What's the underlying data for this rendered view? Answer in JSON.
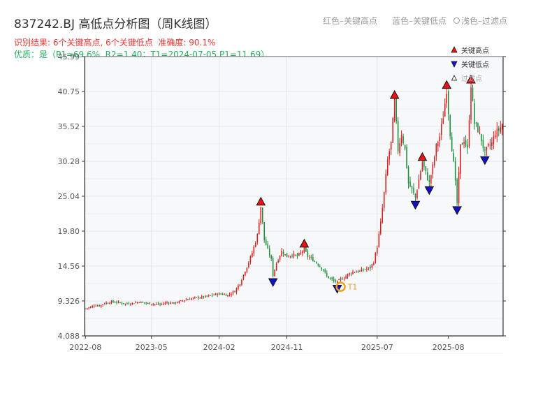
{
  "title": "837242.BJ 高低点分析图（周K线图）",
  "legend_header": {
    "red": "红色–关键高点",
    "blue": "蓝色–关键低点",
    "light": "浅色–过滤点"
  },
  "subtitle": {
    "result": "识别结果: 6个关键高点, 6个关键低点",
    "accuracy": "准确度: 90.1%",
    "quality": "优质：是（P1=69.6%, R2=1.40；T1=2024-07-05 P1=11.69）"
  },
  "colors": {
    "up": "#d91c1c",
    "down": "#1a8c3a",
    "high_marker": "#ee1111",
    "low_marker": "#1111cc",
    "t1_marker": "#f0a020",
    "grid": "#e3e6ea",
    "plot_bg": "#f7f8fa",
    "axis": "#333333"
  },
  "chart_data": {
    "type": "candlestick",
    "period": "weekly",
    "ylim": [
      4.088,
      45.99
    ],
    "y_ticks": [
      "4.088",
      "9.326",
      "14.56",
      "19.80",
      "25.04",
      "30.28",
      "35.52",
      "40.75",
      "45.99"
    ],
    "x_ticks": [
      "2022-08",
      "2023-05",
      "2024-02",
      "2024-11",
      "2025-07",
      "2025-08"
    ],
    "grid": true,
    "plot_legend_position": "top-right",
    "plot_legend": [
      {
        "label": "关键高点",
        "marker": "high"
      },
      {
        "label": "关键低点",
        "marker": "low"
      },
      {
        "label": "过滤点",
        "marker": "filtered"
      }
    ],
    "close_path": [
      [
        0,
        8.2
      ],
      [
        3,
        8.4
      ],
      [
        5,
        8.7
      ],
      [
        8,
        8.6
      ],
      [
        11,
        9.0
      ],
      [
        15,
        9.2
      ],
      [
        19,
        9.1
      ],
      [
        23,
        8.9
      ],
      [
        27,
        9.0
      ],
      [
        31,
        9.2
      ],
      [
        35,
        9.0
      ],
      [
        39,
        8.9
      ],
      [
        43,
        8.8
      ],
      [
        47,
        9.1
      ],
      [
        51,
        9.0
      ],
      [
        55,
        9.3
      ],
      [
        59,
        9.6
      ],
      [
        63,
        9.8
      ],
      [
        67,
        9.9
      ],
      [
        70,
        10.0
      ],
      [
        74,
        10.3
      ],
      [
        78,
        10.4
      ],
      [
        82,
        10.2
      ],
      [
        86,
        10.8
      ],
      [
        89,
        12.0
      ],
      [
        93,
        14.5
      ],
      [
        96,
        16.5
      ],
      [
        99,
        19.2
      ],
      [
        101,
        23.5
      ],
      [
        103,
        18.5
      ],
      [
        105,
        17.0
      ],
      [
        107,
        15.5
      ],
      [
        108,
        13.2
      ],
      [
        110,
        15.0
      ],
      [
        113,
        16.8
      ],
      [
        116,
        16.0
      ],
      [
        119,
        16.3
      ],
      [
        122,
        16.0
      ],
      [
        124,
        16.5
      ],
      [
        126,
        17.2
      ],
      [
        128,
        16.0
      ],
      [
        131,
        15.5
      ],
      [
        134,
        14.8
      ],
      [
        137,
        14.0
      ],
      [
        139,
        13.0
      ],
      [
        141,
        12.7
      ],
      [
        143,
        12.3
      ],
      [
        145,
        12.2
      ],
      [
        147,
        12.6
      ],
      [
        149,
        12.8
      ],
      [
        151,
        13.3
      ],
      [
        154,
        13.7
      ],
      [
        158,
        13.8
      ],
      [
        161,
        14.1
      ],
      [
        164,
        14.3
      ],
      [
        166,
        15.2
      ],
      [
        168,
        17.5
      ],
      [
        170,
        21.0
      ],
      [
        172,
        25.5
      ],
      [
        174,
        30.5
      ],
      [
        176,
        33.0
      ],
      [
        178,
        39.5
      ],
      [
        180,
        32.0
      ],
      [
        182,
        34.5
      ],
      [
        184,
        32.0
      ],
      [
        186,
        27.0
      ],
      [
        188,
        26.0
      ],
      [
        190,
        24.8
      ],
      [
        192,
        27.5
      ],
      [
        194,
        30.2
      ],
      [
        196,
        28.5
      ],
      [
        198,
        27.0
      ],
      [
        200,
        29.5
      ],
      [
        202,
        32.5
      ],
      [
        204,
        34.0
      ],
      [
        206,
        37.0
      ],
      [
        208,
        41.0
      ],
      [
        210,
        34.5
      ],
      [
        212,
        30.0
      ],
      [
        214,
        24.0
      ],
      [
        216,
        32.5
      ],
      [
        218,
        33.5
      ],
      [
        220,
        32.0
      ],
      [
        222,
        41.8
      ],
      [
        224,
        36.0
      ],
      [
        226,
        35.0
      ],
      [
        228,
        33.5
      ],
      [
        230,
        31.5
      ],
      [
        232,
        32.5
      ],
      [
        234,
        33.0
      ],
      [
        236,
        34.5
      ],
      [
        238,
        35.0
      ],
      [
        240,
        35.8
      ]
    ],
    "key_points": [
      {
        "type": "high",
        "week": 101,
        "price": 23.5
      },
      {
        "type": "low",
        "week": 108,
        "price": 13.2
      },
      {
        "type": "high",
        "week": 126,
        "price": 17.2
      },
      {
        "type": "low",
        "week": 145,
        "price": 12.2
      },
      {
        "type": "high",
        "week": 178,
        "price": 39.5
      },
      {
        "type": "low",
        "week": 190,
        "price": 24.8
      },
      {
        "type": "high",
        "week": 194,
        "price": 30.2
      },
      {
        "type": "low",
        "week": 198,
        "price": 27.0
      },
      {
        "type": "high",
        "week": 208,
        "price": 41.0
      },
      {
        "type": "low",
        "week": 214,
        "price": 24.0
      },
      {
        "type": "high",
        "week": 222,
        "price": 41.8
      },
      {
        "type": "low",
        "week": 230,
        "price": 31.5
      }
    ],
    "annotation": {
      "label": "T1",
      "week": 147,
      "price": 12.3
    }
  }
}
